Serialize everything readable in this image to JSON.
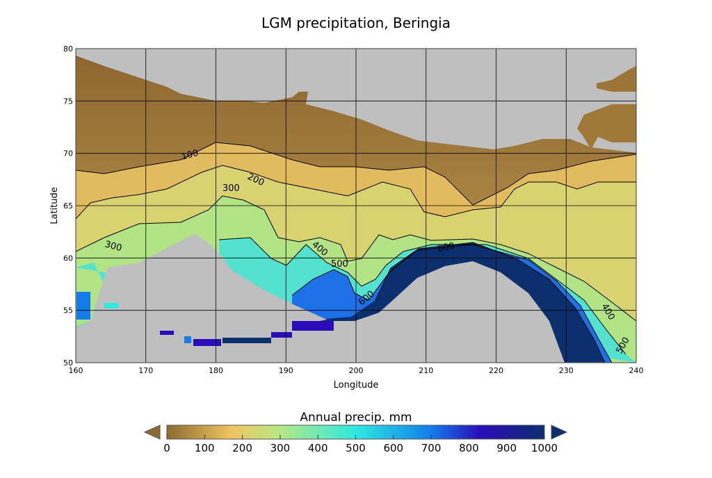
{
  "chart_data": {
    "type": "heatmap",
    "title": "LGM precipitation, Beringia",
    "xlabel": "Longitude",
    "ylabel": "Latitude",
    "xlim": [
      160,
      240
    ],
    "ylim": [
      50,
      80
    ],
    "xticks": [
      "160",
      "170",
      "180",
      "190",
      "200",
      "210",
      "220",
      "230",
      "240"
    ],
    "yticks": [
      "50",
      "55",
      "60",
      "65",
      "70",
      "75",
      "80"
    ],
    "grid": true,
    "missing_color": "#bfbfbf",
    "contour_levels": [
      100,
      200,
      300,
      400,
      500,
      600,
      700,
      800,
      900
    ],
    "contour_labels": [
      "100",
      "200",
      "300",
      "300",
      "400",
      "500",
      "600",
      "800",
      "400",
      "500"
    ],
    "colorbar": {
      "label": "Annual precip. mm",
      "range": [
        0,
        1000
      ],
      "ticks": [
        "0",
        "100",
        "200",
        "300",
        "400",
        "500",
        "600",
        "700",
        "800",
        "900",
        "1000"
      ],
      "extend": "both",
      "colors": [
        "#8c6a30",
        "#f0c462",
        "#b5e985",
        "#2ee9e2",
        "#137cea",
        "#2a0db8",
        "#0c2f6e"
      ]
    }
  }
}
